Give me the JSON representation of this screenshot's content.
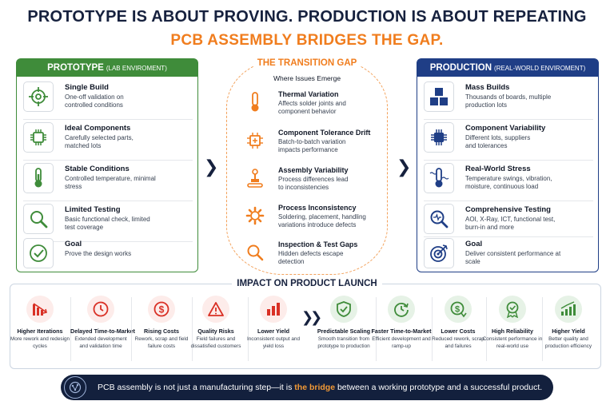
{
  "header": {
    "title_line1": "PROTOTYPE IS ABOUT PROVING. PRODUCTION IS ABOUT REPEATING",
    "title_line2": "PCB ASSEMBLY BRIDGES THE GAP."
  },
  "prototype": {
    "heading": "PROTOTYPE",
    "heading_sub": "(LAB ENVIROMENT)",
    "items": [
      {
        "title": "Single Build",
        "desc": "One-off validation on controlled conditions",
        "icon": "target-icon"
      },
      {
        "title": "Ideal Components",
        "desc": "Carefully selected parts, matched lots",
        "icon": "chip-icon"
      },
      {
        "title": "Stable Conditions",
        "desc": "Controlled temperature, minimal stress",
        "icon": "thermometer-icon"
      },
      {
        "title": "Limited Testing",
        "desc": "Basic functional check, limited test coverage",
        "icon": "magnifier-icon"
      },
      {
        "title": "Goal",
        "desc": "Prove the design works",
        "icon": "check-icon"
      }
    ]
  },
  "transition": {
    "heading": "THE TRANSITION GAP",
    "subheading": "Where Issues Emerge",
    "items": [
      {
        "title": "Thermal Variation",
        "desc": "Affects solder joints and component behavior",
        "icon": "thermometer-icon"
      },
      {
        "title": "Component Tolerance Drift",
        "desc": "Batch-to-batch variation impacts performance",
        "icon": "chip-icon"
      },
      {
        "title": "Assembly Variability",
        "desc": "Process differences lead to inconsistencies",
        "icon": "robot-arm-icon"
      },
      {
        "title": "Process Inconsistency",
        "desc": "Soldering, placement, handling variations introduce defects",
        "icon": "gear-icon"
      },
      {
        "title": "Inspection & Test Gaps",
        "desc": "Hidden defects escape detection",
        "icon": "magnifier-icon"
      }
    ]
  },
  "production": {
    "heading": "PRODUCTION",
    "heading_sub": "(REAL-WORLD ENVIROMENT)",
    "items": [
      {
        "title": "Mass Builds",
        "desc": "Thousands of boards, multiple production lots",
        "icon": "cubes-icon"
      },
      {
        "title": "Component Variability",
        "desc": "Different lots, suppliers and tolerances",
        "icon": "chip-icon"
      },
      {
        "title": "Real-World Stress",
        "desc": "Temperature swings, vibration, moisture, continuous load",
        "icon": "thermometer-icon"
      },
      {
        "title": "Comprehensive Testing",
        "desc": "AOI, X-Ray, ICT, functional test, burn-in and more",
        "icon": "magnifier-icon"
      },
      {
        "title": "Goal",
        "desc": "Deliver consistent performance at scale",
        "icon": "bullseye-icon"
      }
    ]
  },
  "impact": {
    "heading": "IMPACT ON PRODUCT LAUNCH",
    "negative": [
      {
        "title": "Higher Iterations",
        "desc": "More rework and redesign cycles",
        "icon": "bar-down-icon"
      },
      {
        "title": "Delayed Time-to-Market",
        "desc": "Extended development and validation time",
        "icon": "clock-icon"
      },
      {
        "title": "Rising Costs",
        "desc": "Rework, scrap and field failure costs",
        "icon": "dollar-icon"
      },
      {
        "title": "Quality Risks",
        "desc": "Field failures and dissatisfied customers",
        "icon": "warning-icon"
      },
      {
        "title": "Lower Yield",
        "desc": "Inconsistent output and yield loss",
        "icon": "bar-chart-icon"
      }
    ],
    "positive": [
      {
        "title": "Predictable Scaling",
        "desc": "Smooth transition from prototype to production",
        "icon": "shield-check-icon"
      },
      {
        "title": "Faster Time-to-Market",
        "desc": "Efficient development and ramp-up",
        "icon": "clock-arrow-icon"
      },
      {
        "title": "Lower Costs",
        "desc": "Reduced rework, scrap and failures",
        "icon": "dollar-down-icon"
      },
      {
        "title": "High Reliability",
        "desc": "Consistent performance in real-world use",
        "icon": "award-icon"
      },
      {
        "title": "Higher Yield",
        "desc": "Better quality and production efficiency",
        "icon": "bar-up-icon"
      }
    ]
  },
  "banner": {
    "text_before": "PCB assembly is not just a manufacturing step—it is ",
    "highlight": "the bridge",
    "text_after": " between a working prototype and a successful product.",
    "icon": "circuit-globe-icon"
  },
  "colors": {
    "navy": "#16213e",
    "orange": "#f07d1e",
    "green": "#3f8c3a",
    "blue": "#1f3e86",
    "red": "#d93025"
  }
}
